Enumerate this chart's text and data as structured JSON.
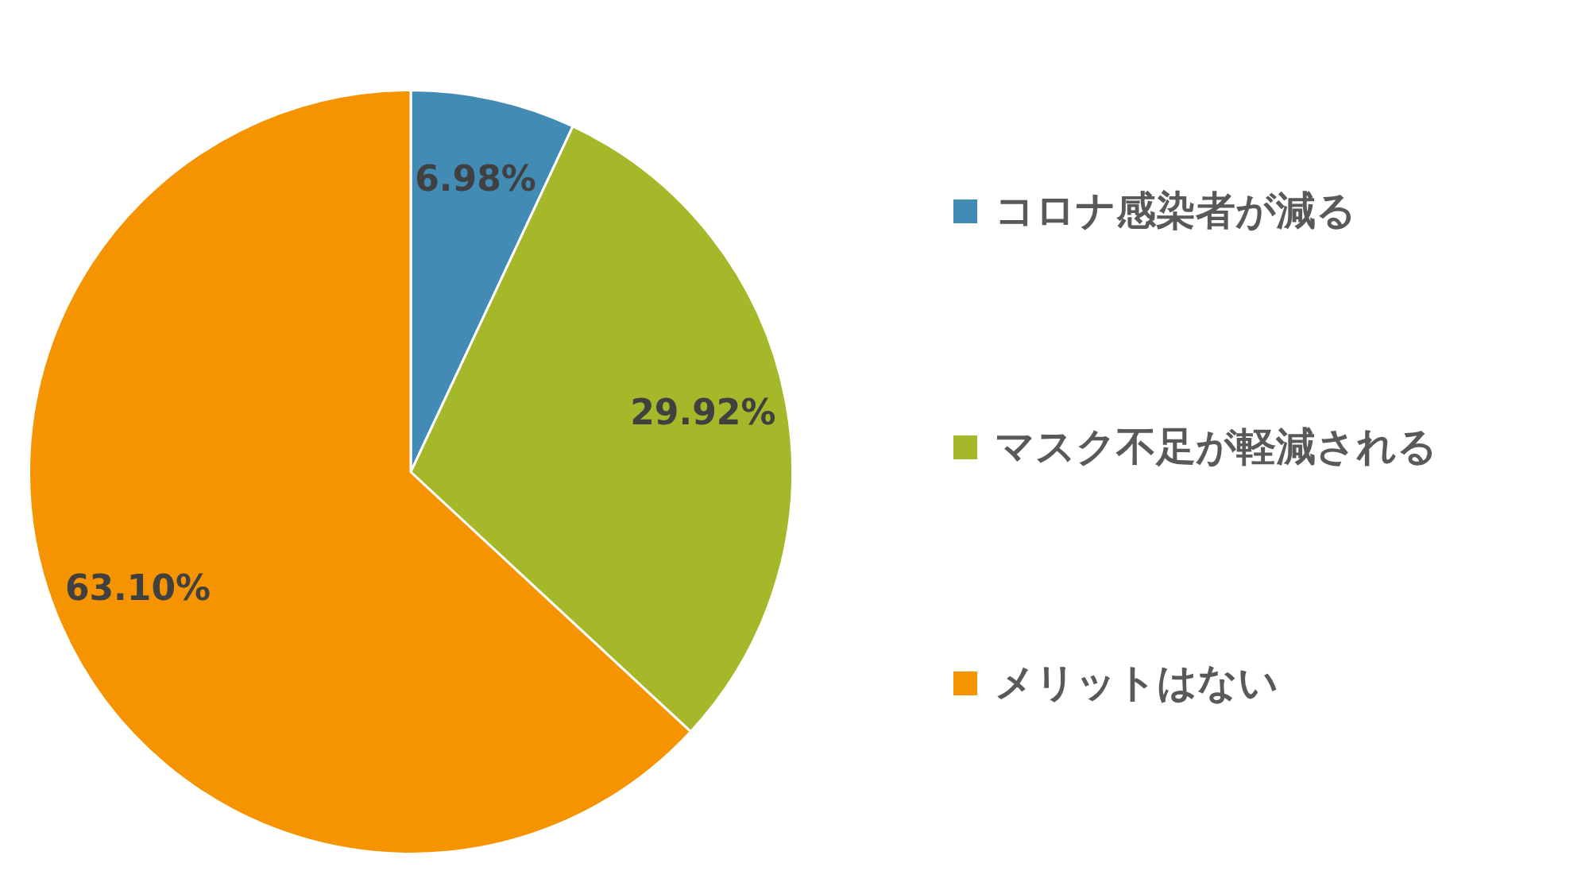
{
  "chart_data": {
    "type": "pie",
    "categories": [
      "コロナ感染者が減る",
      "マスク不足が軽減される",
      "メリットはない"
    ],
    "values": [
      6.98,
      29.92,
      63.1
    ],
    "colors": [
      "#428bb4",
      "#a5b829",
      "#f59300"
    ],
    "value_labels": [
      "6.98%",
      "29.92%",
      "63.10%"
    ],
    "legend": "right"
  }
}
